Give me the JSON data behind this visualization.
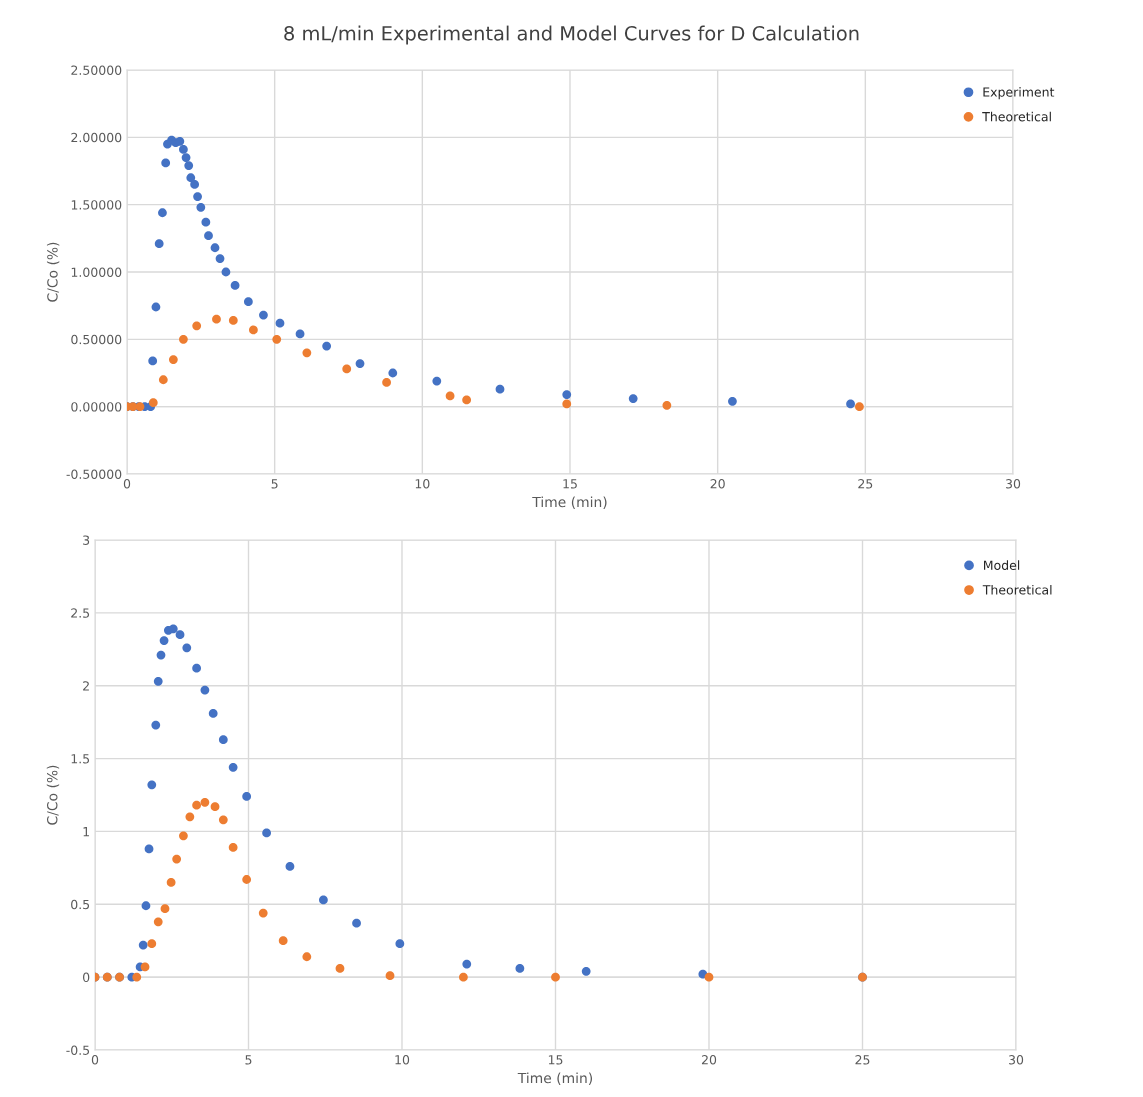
{
  "chart_data": [
    {
      "type": "scatter",
      "title": "8 mL/min Experimental and Model Curves for D Calculation",
      "xlabel": "Time (min)",
      "ylabel": "C/Co (%)",
      "xlim": [
        0,
        30
      ],
      "xticks": [
        0,
        5,
        10,
        15,
        20,
        25,
        30
      ],
      "ylim": [
        -0.5,
        2.5
      ],
      "yticks": [
        {
          "value": -0.5,
          "label": "-0.50000"
        },
        {
          "value": 0,
          "label": "0.00000"
        },
        {
          "value": 0.5,
          "label": "0.50000"
        },
        {
          "value": 1,
          "label": "1.00000"
        },
        {
          "value": 1.5,
          "label": "1.50000"
        },
        {
          "value": 2,
          "label": "2.00000"
        },
        {
          "value": 2.5,
          "label": "2.50000"
        }
      ],
      "grid": true,
      "legend": "top right",
      "marker": "circle",
      "series": [
        {
          "name": "Experiment",
          "color": "#4472c4",
          "x": [
            0,
            0.2,
            0.4,
            0.6,
            0.8,
            0.87,
            0.98,
            1.09,
            1.2,
            1.31,
            1.37,
            1.51,
            1.65,
            1.79,
            1.91,
            2.0,
            2.09,
            2.16,
            2.29,
            2.39,
            2.5,
            2.67,
            2.76,
            2.98,
            3.15,
            3.35,
            3.66,
            4.11,
            4.62,
            5.18,
            5.86,
            6.76,
            7.89,
            9.0,
            10.49,
            12.63,
            14.89,
            17.14,
            20.5,
            24.5
          ],
          "values": [
            0,
            0,
            0,
            0,
            0,
            0.34,
            0.74,
            1.21,
            1.44,
            1.81,
            1.95,
            1.98,
            1.96,
            1.97,
            1.91,
            1.85,
            1.79,
            1.7,
            1.65,
            1.56,
            1.48,
            1.37,
            1.27,
            1.18,
            1.1,
            1.0,
            0.9,
            0.78,
            0.68,
            0.62,
            0.54,
            0.45,
            0.32,
            0.25,
            0.19,
            0.13,
            0.09,
            0.06,
            0.04,
            0.02
          ]
        },
        {
          "name": "Theoretical",
          "color": "#ed7d31",
          "x": [
            0,
            0.2,
            0.44,
            0.89,
            1.23,
            1.57,
            1.91,
            2.36,
            3.03,
            3.6,
            4.28,
            5.07,
            6.09,
            7.44,
            8.79,
            10.94,
            11.5,
            14.89,
            18.28,
            24.8
          ],
          "values": [
            0,
            0,
            0,
            0.03,
            0.2,
            0.35,
            0.5,
            0.6,
            0.65,
            0.64,
            0.57,
            0.5,
            0.4,
            0.28,
            0.18,
            0.08,
            0.05,
            0.02,
            0.01,
            0
          ]
        }
      ]
    },
    {
      "type": "scatter",
      "xlabel": "Time (min)",
      "ylabel": "C/Co (%)",
      "xlim": [
        0,
        30
      ],
      "xticks": [
        0,
        5,
        10,
        15,
        20,
        25,
        30
      ],
      "ylim": [
        -0.5,
        3
      ],
      "yticks": [
        -0.5,
        0,
        0.5,
        1,
        1.5,
        2,
        2.5,
        3
      ],
      "grid": true,
      "legend": "top right",
      "marker": "circle",
      "series": [
        {
          "name": "Model",
          "color": "#4472c4",
          "x": [
            0,
            0.4,
            0.8,
            1.2,
            1.47,
            1.57,
            1.66,
            1.76,
            1.85,
            1.98,
            2.06,
            2.15,
            2.25,
            2.39,
            2.55,
            2.77,
            2.99,
            3.31,
            3.58,
            3.85,
            4.18,
            4.5,
            4.94,
            5.59,
            6.35,
            7.44,
            8.52,
            9.93,
            12.11,
            13.84,
            16.0,
            19.8,
            25.0
          ],
          "values": [
            0,
            0,
            0,
            0,
            0.07,
            0.22,
            0.49,
            0.88,
            1.32,
            1.73,
            2.03,
            2.21,
            2.31,
            2.38,
            2.39,
            2.35,
            2.26,
            2.12,
            1.97,
            1.81,
            1.63,
            1.44,
            1.24,
            0.99,
            0.76,
            0.53,
            0.37,
            0.23,
            0.09,
            0.06,
            0.04,
            0.02,
            0
          ]
        },
        {
          "name": "Theoretical",
          "color": "#ed7d31",
          "x": [
            0,
            0.4,
            0.8,
            1.36,
            1.63,
            1.85,
            2.06,
            2.28,
            2.48,
            2.66,
            2.88,
            3.09,
            3.31,
            3.58,
            3.91,
            4.18,
            4.5,
            4.94,
            5.48,
            6.13,
            6.9,
            7.98,
            9.61,
            12.0,
            15.0,
            20.0,
            25.0
          ],
          "values": [
            0,
            0,
            0,
            0,
            0.07,
            0.23,
            0.38,
            0.47,
            0.65,
            0.81,
            0.97,
            1.1,
            1.18,
            1.2,
            1.17,
            1.08,
            0.89,
            0.67,
            0.44,
            0.25,
            0.14,
            0.06,
            0.01,
            0,
            0,
            0,
            0
          ]
        }
      ]
    }
  ]
}
